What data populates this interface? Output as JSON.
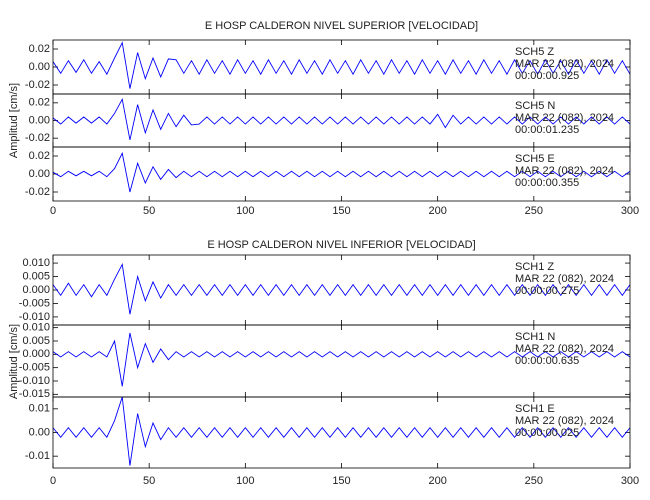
{
  "chart_data": [
    {
      "type": "line",
      "title": "E HOSP CALDERON NIVEL SUPERIOR [VELOCIDAD]",
      "ylabel": "Amplitud [cm/s]",
      "xlim": [
        0,
        300
      ],
      "xticks": [
        0,
        50,
        100,
        150,
        200,
        250,
        300
      ],
      "x": [
        0,
        4,
        8,
        12,
        16,
        20,
        24,
        28,
        32,
        36,
        40,
        44,
        48,
        52,
        56,
        60,
        64,
        68,
        72,
        76,
        80,
        84,
        88,
        92,
        96,
        100,
        104,
        108,
        112,
        116,
        120,
        124,
        128,
        132,
        136,
        140,
        144,
        148,
        152,
        156,
        160,
        164,
        168,
        172,
        176,
        180,
        184,
        188,
        192,
        196,
        200,
        204,
        208,
        212,
        216,
        220,
        224,
        228,
        232,
        236,
        240,
        244,
        248,
        252,
        256,
        260,
        264,
        268,
        272,
        276,
        280,
        284,
        288,
        292,
        296,
        300
      ],
      "panels": [
        {
          "ylim": [
            -0.03,
            0.03
          ],
          "yticks": [
            0.02,
            {
              "value": 0,
              "label": "0.00"
            },
            -0.02
          ],
          "series": [
            {
              "name": "SCH5 Z",
              "color": "#0000ff",
              "values": [
                0.006,
                -0.007,
                0.007,
                -0.006,
                0.008,
                -0.007,
                0.006,
                -0.008,
                0.01,
                0.027,
                -0.024,
                0.016,
                -0.013,
                0.01,
                -0.011,
                0.009,
                0.008,
                -0.007,
                0.007,
                -0.008,
                0.008,
                -0.007,
                0.007,
                -0.008,
                0.008,
                -0.007,
                0.007,
                -0.008,
                0.008,
                -0.007,
                0.007,
                -0.008,
                0.008,
                -0.007,
                0.007,
                -0.008,
                0.008,
                -0.007,
                0.007,
                -0.008,
                0.008,
                -0.007,
                0.007,
                -0.008,
                0.008,
                -0.007,
                0.007,
                -0.008,
                0.008,
                -0.007,
                0.007,
                -0.008,
                0.008,
                -0.007,
                0.007,
                -0.008,
                0.008,
                -0.007,
                0.007,
                -0.008,
                0.008,
                -0.007,
                0.007,
                -0.008,
                0.008,
                -0.007,
                0.007,
                -0.008,
                0.008,
                -0.007,
                0.007,
                -0.008,
                0.008,
                -0.007,
                0.007,
                -0.008
              ]
            }
          ],
          "annotations": [
            "MAR 22 (082), 2024",
            "00:00:00.925"
          ]
        },
        {
          "ylim": [
            -0.03,
            0.03
          ],
          "yticks": [
            0.02,
            {
              "value": 0,
              "label": "0.00"
            },
            -0.02
          ],
          "series": [
            {
              "name": "SCH5 N",
              "color": "#0000ff",
              "values": [
                0.003,
                -0.004,
                0.004,
                -0.003,
                0.004,
                -0.003,
                0.004,
                -0.004,
                0.008,
                0.024,
                -0.022,
                0.018,
                -0.014,
                0.012,
                -0.01,
                0.008,
                -0.007,
                0.006,
                -0.005,
                -0.004,
                0.004,
                -0.004,
                0.004,
                -0.004,
                0.004,
                -0.004,
                0.004,
                -0.004,
                0.004,
                -0.004,
                0.004,
                -0.004,
                0.004,
                -0.004,
                0.004,
                -0.004,
                0.004,
                -0.004,
                0.004,
                -0.004,
                0.004,
                -0.004,
                0.004,
                -0.004,
                0.004,
                -0.004,
                0.004,
                -0.004,
                0.004,
                -0.004,
                0.007,
                -0.008,
                0.006,
                -0.004,
                0.004,
                -0.004,
                0.004,
                -0.004,
                0.004,
                -0.004,
                0.004,
                -0.004,
                0.004,
                -0.004,
                0.004,
                -0.004,
                0.004,
                -0.004,
                0.004,
                -0.004,
                0.004,
                -0.004,
                0.004,
                -0.004,
                0.004,
                -0.004
              ]
            }
          ],
          "annotations": [
            "MAR 22 (082), 2024",
            "00:00:01.235"
          ]
        },
        {
          "ylim": [
            -0.03,
            0.03
          ],
          "yticks": [
            0.02,
            {
              "value": 0,
              "label": "0.00"
            },
            -0.02
          ],
          "series": [
            {
              "name": "SCH5 E",
              "color": "#0000ff",
              "values": [
                0.002,
                -0.003,
                0.003,
                -0.002,
                0.003,
                -0.002,
                0.003,
                -0.003,
                0.006,
                0.023,
                -0.02,
                0.012,
                -0.01,
                0.008,
                -0.006,
                0.005,
                -0.004,
                0.003,
                -0.003,
                0.003,
                -0.003,
                0.003,
                -0.003,
                0.003,
                -0.003,
                0.003,
                -0.003,
                0.003,
                -0.003,
                0.003,
                -0.003,
                0.003,
                -0.003,
                0.003,
                -0.003,
                0.003,
                -0.003,
                0.003,
                -0.003,
                0.003,
                -0.003,
                0.003,
                -0.003,
                0.003,
                -0.003,
                0.003,
                -0.003,
                0.003,
                -0.003,
                0.003,
                -0.003,
                0.003,
                -0.003,
                0.003,
                -0.003,
                0.003,
                -0.003,
                0.003,
                -0.003,
                0.003,
                -0.003,
                0.003,
                -0.003,
                0.003,
                -0.003,
                0.003,
                -0.003,
                0.003,
                -0.003,
                0.003,
                -0.003,
                0.003,
                -0.003,
                0.003,
                -0.003,
                0.003
              ]
            }
          ],
          "annotations": [
            "MAR 22 (082), 2024",
            "00:00:00.355"
          ]
        }
      ]
    },
    {
      "type": "line",
      "title": "E HOSP CALDERON NIVEL INFERIOR [VELOCIDAD]",
      "ylabel": "Amplitud [cm/s]",
      "xlim": [
        0,
        300
      ],
      "xticks": [
        0,
        50,
        100,
        150,
        200,
        250,
        300
      ],
      "x": [
        0,
        4,
        8,
        12,
        16,
        20,
        24,
        28,
        32,
        36,
        40,
        44,
        48,
        52,
        56,
        60,
        64,
        68,
        72,
        76,
        80,
        84,
        88,
        92,
        96,
        100,
        104,
        108,
        112,
        116,
        120,
        124,
        128,
        132,
        136,
        140,
        144,
        148,
        152,
        156,
        160,
        164,
        168,
        172,
        176,
        180,
        184,
        188,
        192,
        196,
        200,
        204,
        208,
        212,
        216,
        220,
        224,
        228,
        232,
        236,
        240,
        244,
        248,
        252,
        256,
        260,
        264,
        268,
        272,
        276,
        280,
        284,
        288,
        292,
        296,
        300
      ],
      "panels": [
        {
          "ylim": [
            -0.013,
            0.013
          ],
          "yticks": [
            {
              "value": 0.01,
              "label": "0.010"
            },
            0.005,
            {
              "value": 0,
              "label": "0.000"
            },
            -0.005,
            {
              "value": -0.01,
              "label": "-0.010"
            }
          ],
          "series": [
            {
              "name": "SCH1 Z",
              "color": "#0000ff",
              "values": [
                0.002,
                -0.002,
                0.0025,
                -0.002,
                0.002,
                -0.0025,
                0.002,
                -0.002,
                0.004,
                0.0095,
                -0.009,
                0.005,
                -0.004,
                0.003,
                -0.003,
                0.002,
                -0.002,
                0.002,
                -0.002,
                0.002,
                -0.002,
                0.002,
                -0.002,
                0.002,
                -0.002,
                0.002,
                -0.002,
                0.002,
                -0.002,
                0.002,
                -0.002,
                0.002,
                -0.002,
                0.002,
                -0.002,
                0.002,
                -0.002,
                0.002,
                -0.002,
                0.002,
                -0.002,
                0.002,
                -0.002,
                0.002,
                -0.002,
                0.002,
                -0.002,
                0.002,
                -0.002,
                0.002,
                -0.002,
                0.002,
                -0.002,
                0.002,
                -0.002,
                0.002,
                -0.002,
                0.002,
                -0.002,
                0.002,
                -0.002,
                0.002,
                -0.002,
                0.002,
                -0.002,
                0.002,
                -0.002,
                0.002,
                -0.002,
                0.002,
                -0.002,
                0.002,
                -0.002,
                0.002,
                -0.002,
                0.002
              ]
            }
          ],
          "annotations": [
            "MAR 22 (082), 2024",
            "00:00:00.275"
          ]
        },
        {
          "ylim": [
            -0.016,
            0.011
          ],
          "yticks": [
            {
              "value": 0.01,
              "label": "0.010"
            },
            0.005,
            {
              "value": 0,
              "label": "0.000"
            },
            -0.005,
            {
              "value": -0.01,
              "label": "-0.010"
            },
            -0.015
          ],
          "series": [
            {
              "name": "SCH1 N",
              "color": "#0000ff",
              "values": [
                0.001,
                -0.001,
                0.001,
                -0.001,
                0.001,
                -0.001,
                0.001,
                -0.001,
                0.005,
                -0.012,
                0.008,
                -0.005,
                0.004,
                -0.003,
                0.002,
                -0.002,
                0.001,
                -0.001,
                0.001,
                -0.001,
                0.001,
                -0.001,
                0.001,
                -0.001,
                0.001,
                -0.001,
                0.001,
                -0.001,
                0.001,
                -0.001,
                0.001,
                -0.001,
                0.001,
                -0.001,
                0.001,
                -0.001,
                0.001,
                -0.001,
                0.001,
                -0.001,
                0.001,
                -0.001,
                0.001,
                -0.001,
                0.001,
                -0.001,
                0.001,
                -0.001,
                0.001,
                -0.001,
                0.001,
                -0.001,
                0.001,
                -0.001,
                0.001,
                -0.001,
                0.001,
                -0.001,
                0.001,
                -0.001,
                0.001,
                -0.001,
                0.001,
                -0.001,
                0.001,
                -0.001,
                0.001,
                -0.001,
                0.001,
                -0.001,
                0.001,
                -0.001,
                0.001,
                -0.001,
                0.001,
                -0.001
              ]
            }
          ],
          "annotations": [
            "MAR 22 (082), 2024",
            "00:00:00.635"
          ]
        },
        {
          "ylim": [
            -0.015,
            0.015
          ],
          "yticks": [
            0.01,
            {
              "value": 0,
              "label": "0.00"
            },
            -0.01
          ],
          "series": [
            {
              "name": "SCH1 E",
              "color": "#0000ff",
              "values": [
                0.002,
                -0.002,
                0.002,
                -0.002,
                0.002,
                -0.002,
                0.002,
                -0.002,
                0.005,
                0.015,
                -0.014,
                0.008,
                -0.006,
                0.004,
                -0.003,
                0.002,
                -0.002,
                0.002,
                -0.002,
                0.002,
                -0.002,
                0.002,
                -0.002,
                0.002,
                -0.002,
                0.002,
                -0.002,
                0.002,
                -0.002,
                0.002,
                -0.002,
                0.002,
                -0.002,
                0.002,
                -0.002,
                0.002,
                -0.002,
                0.002,
                -0.002,
                0.002,
                -0.002,
                0.002,
                -0.002,
                0.002,
                -0.002,
                0.002,
                -0.002,
                0.002,
                -0.002,
                0.002,
                -0.002,
                0.002,
                -0.002,
                0.002,
                -0.002,
                0.002,
                -0.002,
                0.002,
                -0.002,
                0.002,
                -0.002,
                0.002,
                -0.002,
                0.002,
                -0.002,
                0.002,
                -0.002,
                0.002,
                -0.002,
                0.002,
                -0.002,
                0.002,
                -0.002,
                0.002,
                -0.002,
                0.002
              ]
            }
          ],
          "annotations": [
            "MAR 22 (082), 2024",
            "00:00:00.025"
          ]
        }
      ]
    }
  ]
}
